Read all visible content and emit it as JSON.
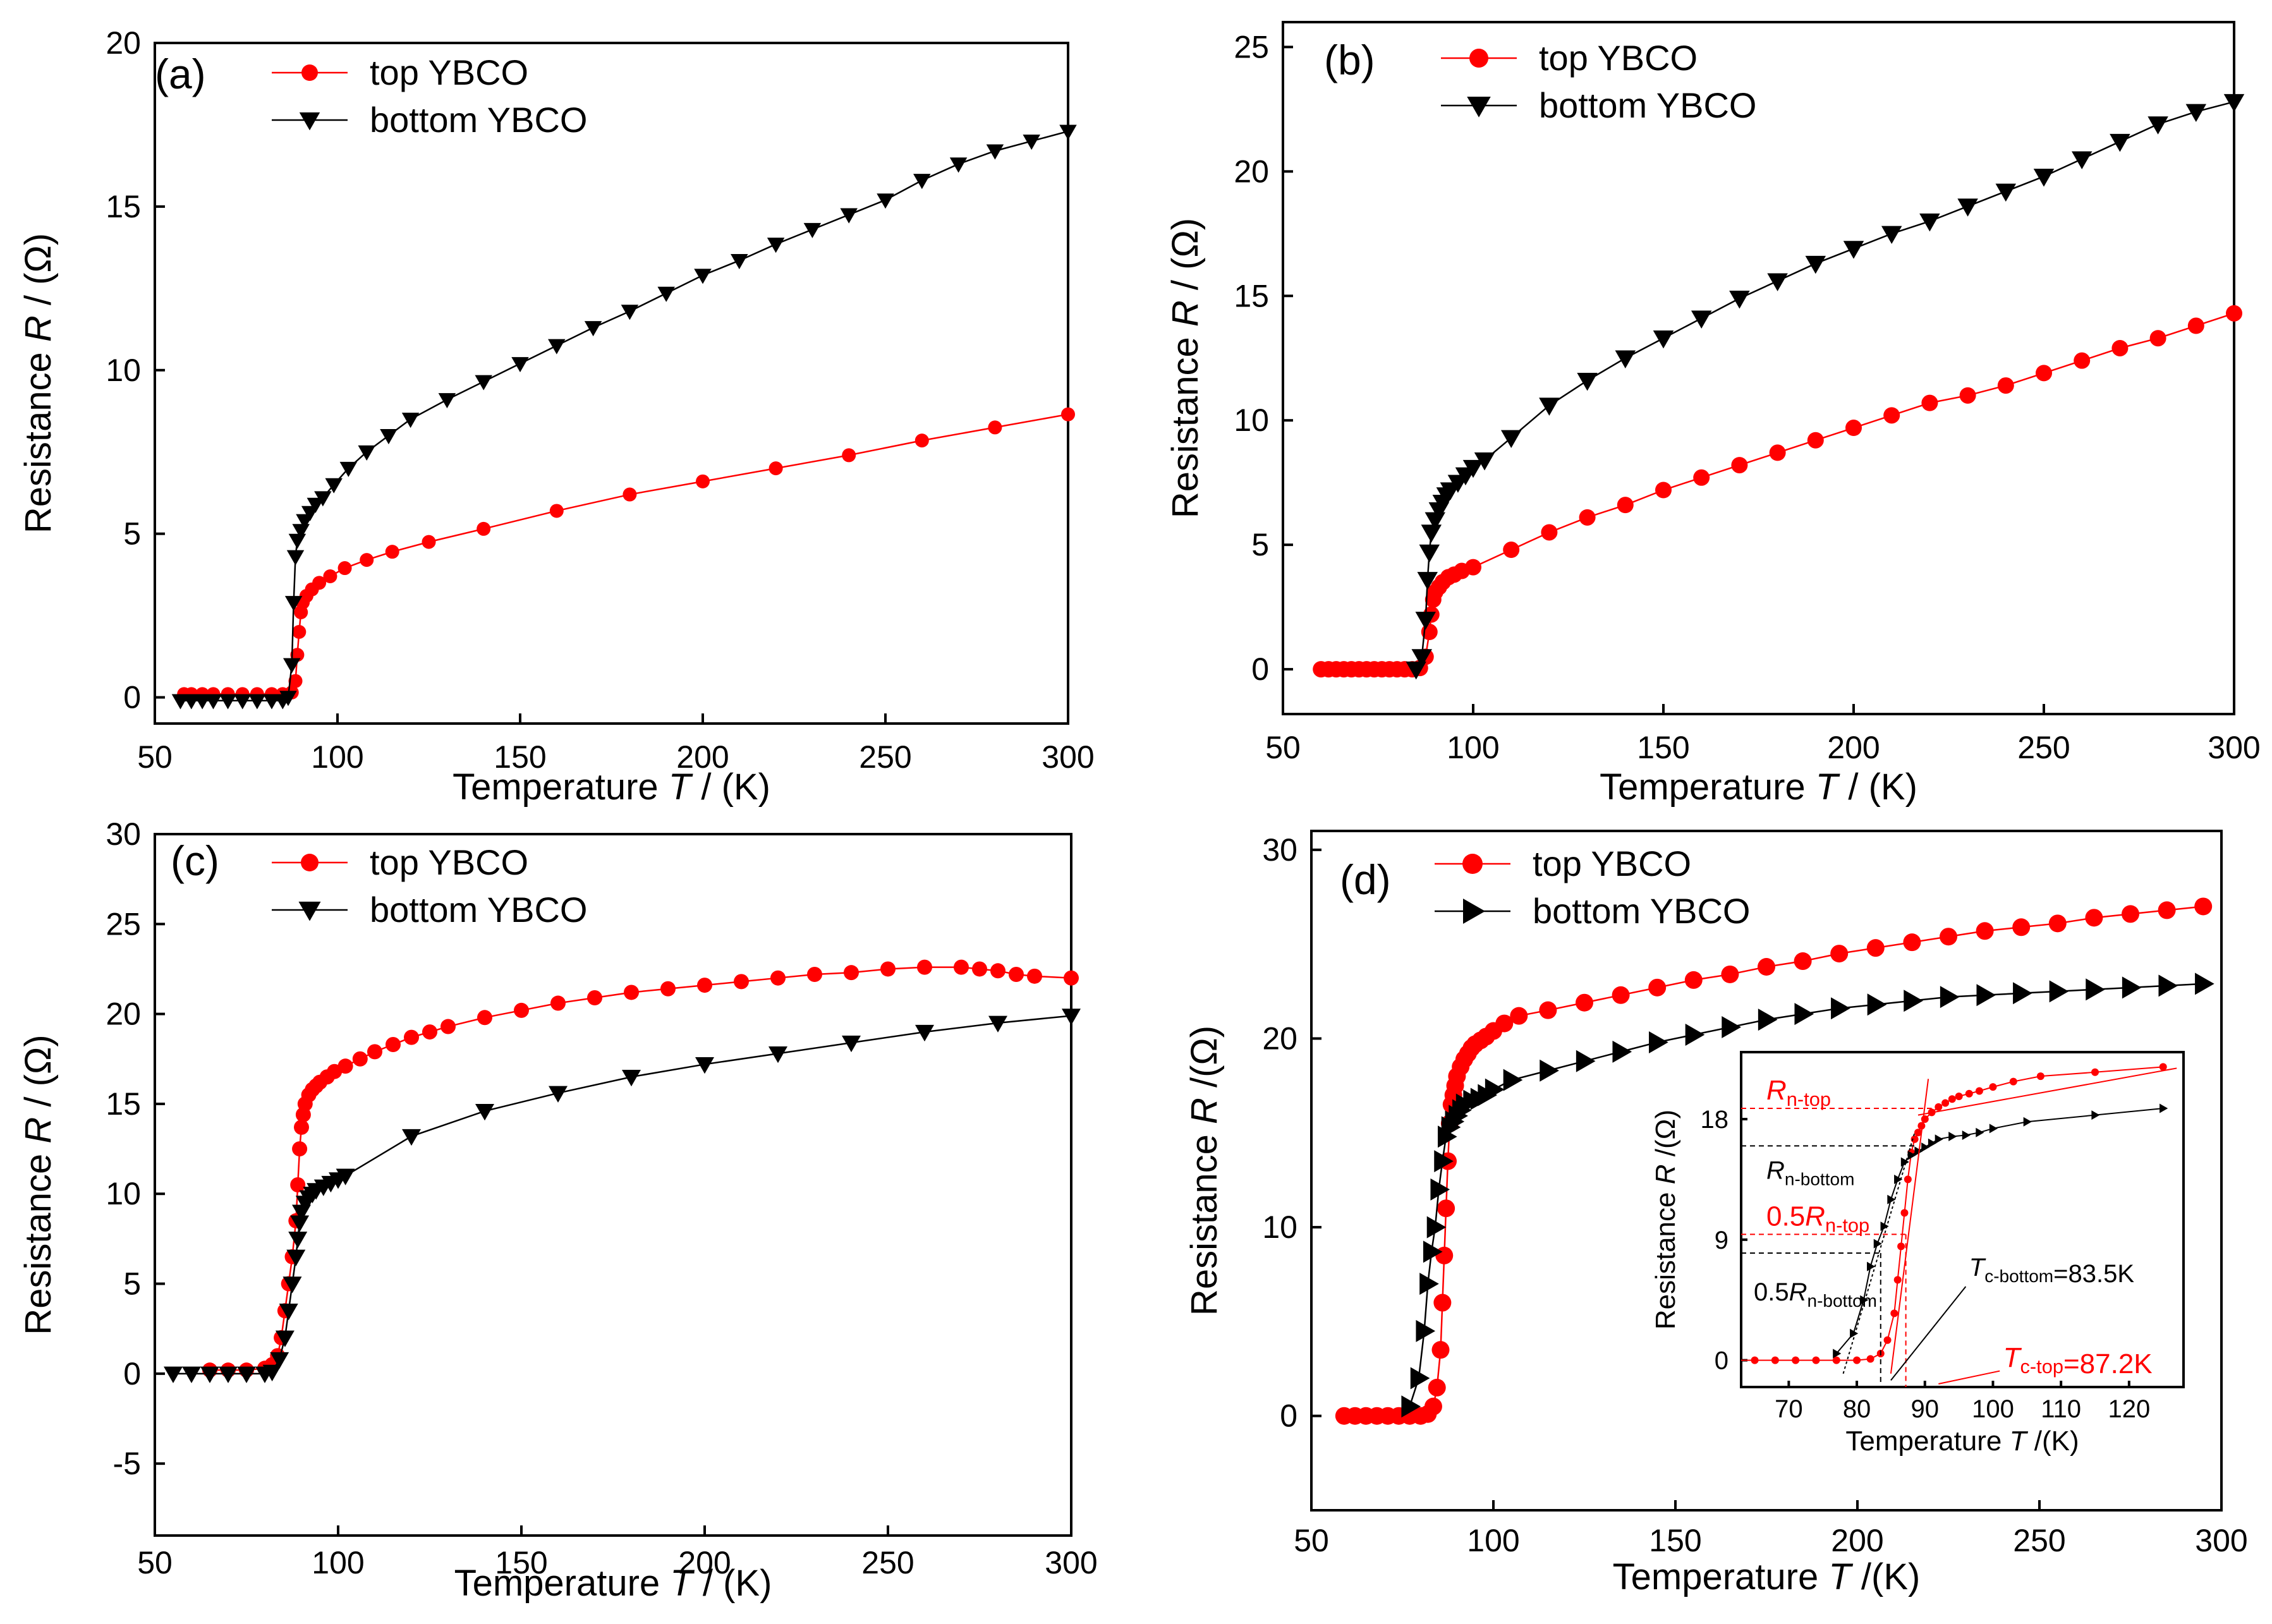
{
  "colors": {
    "top": "#ff0000",
    "bottom": "#000000"
  },
  "chart_data": [
    {
      "panel": "(a)",
      "type": "line",
      "xlabel_prefix": "Temperature ",
      "xlabel_var": "T",
      "xlabel_suffix": " / (K)",
      "ylabel_prefix": "Resistance ",
      "ylabel_var": "R",
      "ylabel_suffix": " / (Ω)",
      "xlim": [
        50,
        300
      ],
      "ylim": [
        -0.8,
        20
      ],
      "xticks": [
        50,
        100,
        150,
        200,
        250,
        300
      ],
      "yticks": [
        0,
        5,
        10,
        15,
        20
      ],
      "legend": [
        "top YBCO",
        "bottom YBCO"
      ],
      "series": [
        {
          "name": "top YBCO",
          "marker": "circle",
          "color": "#ff0000",
          "x": [
            58,
            60,
            63,
            66,
            70,
            74,
            78,
            82,
            85,
            87.5,
            88.5,
            89,
            89.5,
            90,
            90.5,
            91.5,
            93,
            95,
            98,
            102,
            108,
            115,
            125,
            140,
            160,
            180,
            200,
            220,
            240,
            260,
            280,
            300
          ],
          "y": [
            0.1,
            0.1,
            0.1,
            0.1,
            0.1,
            0.1,
            0.1,
            0.1,
            0.1,
            0.15,
            0.5,
            1.3,
            2.0,
            2.6,
            2.9,
            3.1,
            3.3,
            3.5,
            3.7,
            3.95,
            4.2,
            4.45,
            4.75,
            5.15,
            5.7,
            6.2,
            6.6,
            7.0,
            7.4,
            7.85,
            8.25,
            8.65
          ]
        },
        {
          "name": "bottom YBCO",
          "marker": "triangle-down",
          "color": "#000000",
          "x": [
            57,
            60,
            63,
            66,
            70,
            74,
            78,
            82,
            85,
            86.5,
            87.5,
            88,
            88.5,
            89,
            90,
            91,
            92.5,
            94,
            96,
            99,
            103,
            108,
            114,
            120,
            130,
            140,
            150,
            160,
            170,
            180,
            190,
            200,
            210,
            220,
            230,
            240,
            250,
            260,
            270,
            280,
            290,
            300
          ],
          "y": [
            -0.1,
            -0.1,
            -0.1,
            -0.1,
            -0.1,
            -0.1,
            -0.1,
            -0.1,
            -0.1,
            0.0,
            1.0,
            2.9,
            4.3,
            4.8,
            5.1,
            5.4,
            5.65,
            5.9,
            6.1,
            6.5,
            7.0,
            7.5,
            8.0,
            8.5,
            9.1,
            9.65,
            10.2,
            10.75,
            11.3,
            11.8,
            12.35,
            12.9,
            13.35,
            13.85,
            14.3,
            14.75,
            15.2,
            15.8,
            16.3,
            16.7,
            17.0,
            17.3
          ]
        }
      ]
    },
    {
      "panel": "(b)",
      "type": "line",
      "xlabel_prefix": "Temperature ",
      "xlabel_var": "T",
      "xlabel_suffix": " / (K)",
      "ylabel_prefix": "Resistance ",
      "ylabel_var": "R",
      "ylabel_suffix": " / (Ω)",
      "xlim": [
        50,
        300
      ],
      "ylim": [
        -1.8,
        26
      ],
      "xticks": [
        50,
        100,
        150,
        200,
        250,
        300
      ],
      "yticks": [
        0,
        5,
        10,
        15,
        20,
        25
      ],
      "legend": [
        "top YBCO",
        "bottom YBCO"
      ],
      "series": [
        {
          "name": "top YBCO",
          "marker": "circle",
          "color": "#ff0000",
          "x": [
            60,
            62,
            64,
            66,
            68,
            70,
            72,
            74,
            76,
            78,
            80,
            82,
            84,
            86,
            87.5,
            88.5,
            89,
            89.5,
            90,
            91,
            92,
            93.5,
            95,
            97,
            100,
            110,
            120,
            130,
            140,
            150,
            160,
            170,
            180,
            190,
            200,
            210,
            220,
            230,
            240,
            250,
            260,
            270,
            280,
            290,
            300
          ],
          "y": [
            0,
            0,
            0,
            0,
            0,
            0,
            0,
            0,
            0,
            0,
            0,
            0,
            0,
            0.05,
            0.5,
            1.5,
            2.2,
            2.8,
            3.1,
            3.3,
            3.5,
            3.7,
            3.8,
            3.95,
            4.1,
            4.8,
            5.5,
            6.1,
            6.6,
            7.2,
            7.7,
            8.2,
            8.7,
            9.2,
            9.7,
            10.2,
            10.7,
            11.0,
            11.4,
            11.9,
            12.4,
            12.9,
            13.3,
            13.8,
            14.3
          ]
        },
        {
          "name": "bottom YBCO",
          "marker": "triangle-down",
          "color": "#000000",
          "x": [
            85,
            86.5,
            87.5,
            88,
            88.5,
            89,
            90,
            91,
            92,
            93,
            94,
            96,
            98,
            100,
            103,
            110,
            120,
            130,
            140,
            150,
            160,
            170,
            180,
            190,
            200,
            210,
            220,
            230,
            240,
            250,
            260,
            270,
            280,
            290,
            300
          ],
          "y": [
            0,
            0.5,
            2.0,
            3.6,
            4.7,
            5.5,
            6.0,
            6.4,
            6.7,
            7.0,
            7.2,
            7.5,
            7.8,
            8.1,
            8.4,
            9.3,
            10.6,
            11.6,
            12.5,
            13.3,
            14.1,
            14.9,
            15.6,
            16.3,
            16.9,
            17.5,
            18.0,
            18.6,
            19.2,
            19.8,
            20.5,
            21.2,
            21.9,
            22.4,
            22.8
          ]
        }
      ]
    },
    {
      "panel": "(c)",
      "type": "line",
      "xlabel_prefix": "Temperature ",
      "xlabel_var": "T",
      "xlabel_suffix": " / (K)",
      "ylabel_prefix": "Resistance ",
      "ylabel_var": "R",
      "ylabel_suffix": " / (Ω)",
      "xlim": [
        50,
        300
      ],
      "ylim": [
        -9,
        30
      ],
      "xticks": [
        50,
        100,
        150,
        200,
        250,
        300
      ],
      "yticks": [
        -5,
        0,
        5,
        10,
        15,
        20,
        25,
        30
      ],
      "legend": [
        "top YBCO",
        "bottom YBCO"
      ],
      "series": [
        {
          "name": "top YBCO",
          "marker": "circle",
          "color": "#ff0000",
          "x": [
            65,
            70,
            75,
            80,
            82,
            83.5,
            84.5,
            85.5,
            86.5,
            87.5,
            88.5,
            89,
            89.5,
            90,
            90.5,
            91,
            92,
            93,
            94,
            95,
            97,
            99,
            102,
            106,
            110,
            115,
            120,
            125,
            130,
            140,
            150,
            160,
            170,
            180,
            190,
            200,
            210,
            220,
            230,
            240,
            250,
            260,
            270,
            275,
            280,
            285,
            290,
            300
          ],
          "y": [
            0.2,
            0.2,
            0.2,
            0.3,
            0.5,
            1.0,
            2.0,
            3.5,
            5.0,
            6.5,
            8.5,
            10.5,
            12.5,
            13.7,
            14.4,
            15.0,
            15.5,
            15.8,
            16.0,
            16.2,
            16.5,
            16.8,
            17.1,
            17.5,
            17.9,
            18.3,
            18.7,
            19.0,
            19.3,
            19.8,
            20.2,
            20.6,
            20.9,
            21.2,
            21.4,
            21.6,
            21.8,
            22.0,
            22.2,
            22.3,
            22.5,
            22.6,
            22.6,
            22.5,
            22.4,
            22.2,
            22.1,
            22.0
          ]
        },
        {
          "name": "bottom YBCO",
          "marker": "triangle-down",
          "color": "#000000",
          "x": [
            55,
            60,
            65,
            70,
            75,
            80,
            82,
            84,
            85.5,
            86.5,
            87.5,
            88.5,
            89,
            89.5,
            90,
            91,
            92,
            93,
            94,
            96,
            98,
            100,
            102,
            120,
            140,
            160,
            180,
            200,
            220,
            240,
            260,
            280,
            300
          ],
          "y": [
            0,
            0,
            0,
            0,
            0,
            0,
            0.1,
            0.8,
            2.0,
            3.5,
            5.0,
            6.5,
            7.5,
            8.4,
            9.0,
            9.5,
            9.8,
            10.0,
            10.2,
            10.4,
            10.6,
            10.8,
            11.0,
            13.2,
            14.6,
            15.6,
            16.5,
            17.2,
            17.8,
            18.4,
            19.0,
            19.5,
            19.9
          ]
        }
      ]
    },
    {
      "panel": "(d)",
      "type": "line",
      "xlabel_prefix": "Temperature ",
      "xlabel_var": "T",
      "xlabel_suffix": " /(K)",
      "ylabel_prefix": "Resistance ",
      "ylabel_var": "R",
      "ylabel_suffix": " /(Ω)",
      "xlim": [
        50,
        300
      ],
      "ylim": [
        -5,
        31
      ],
      "xticks": [
        50,
        100,
        150,
        200,
        250,
        300
      ],
      "yticks": [
        0,
        10,
        20,
        30
      ],
      "legend": [
        "top YBCO",
        "bottom YBCO"
      ],
      "series": [
        {
          "name": "top YBCO",
          "marker": "circle",
          "color": "#ff0000",
          "x": [
            59,
            62,
            65,
            68,
            71,
            74,
            77,
            80,
            82,
            83.5,
            84.5,
            85.5,
            86,
            86.5,
            87,
            87.5,
            88,
            88.5,
            89,
            89.5,
            90,
            91,
            92,
            93,
            94,
            95,
            96.5,
            98,
            100,
            103,
            107,
            115,
            125,
            135,
            145,
            155,
            165,
            175,
            185,
            195,
            205,
            215,
            225,
            235,
            245,
            255,
            265,
            275,
            285,
            295
          ],
          "y": [
            0,
            0,
            0,
            0,
            0,
            0,
            0,
            0,
            0.1,
            0.5,
            1.5,
            3.5,
            6.0,
            8.5,
            11.0,
            13.5,
            15.5,
            16.5,
            17.0,
            17.5,
            18.0,
            18.5,
            18.9,
            19.2,
            19.5,
            19.7,
            19.9,
            20.1,
            20.4,
            20.8,
            21.2,
            21.5,
            21.9,
            22.3,
            22.7,
            23.1,
            23.4,
            23.8,
            24.1,
            24.5,
            24.8,
            25.1,
            25.4,
            25.7,
            25.9,
            26.1,
            26.4,
            26.6,
            26.8,
            27.0
          ]
        },
        {
          "name": "bottom YBCO",
          "marker": "triangle-right",
          "color": "#000000",
          "x": [
            77,
            79.5,
            81,
            82,
            83,
            84,
            85,
            86,
            87,
            88,
            89,
            90,
            91,
            92,
            94,
            96,
            98,
            100,
            105,
            115,
            125,
            135,
            145,
            155,
            165,
            175,
            185,
            195,
            205,
            215,
            225,
            235,
            245,
            255,
            265,
            275,
            285,
            295
          ],
          "y": [
            0.5,
            2.0,
            4.5,
            7.0,
            8.7,
            10.0,
            12.0,
            13.5,
            14.8,
            15.3,
            15.6,
            15.9,
            16.2,
            16.5,
            16.7,
            16.8,
            17.0,
            17.3,
            17.8,
            18.3,
            18.8,
            19.3,
            19.8,
            20.2,
            20.6,
            21.0,
            21.3,
            21.6,
            21.8,
            22.0,
            22.2,
            22.3,
            22.4,
            22.5,
            22.6,
            22.7,
            22.8,
            22.9
          ]
        }
      ],
      "inset": {
        "xlabel_prefix": "Temperature ",
        "xlabel_var": "T",
        "xlabel_suffix": " /(K)",
        "ylabel_prefix": "Resistance ",
        "ylabel_var": "R",
        "ylabel_suffix": " /(Ω)",
        "xlim": [
          63,
          128
        ],
        "ylim": [
          -2,
          23
        ],
        "xticks": [
          70,
          80,
          90,
          100,
          110,
          120
        ],
        "yticks": [
          0,
          9,
          18
        ],
        "Rn_top": 18.8,
        "Rn_bottom": 16.0,
        "half_Rn_top": 9.4,
        "half_Rn_bottom": 8.0,
        "Tc_bottom": 83.5,
        "Tc_top": 87.2,
        "labels": {
          "rn_top_var": "R",
          "rn_top_sub": "n-top",
          "rn_bottom_var": "R",
          "rn_bottom_sub": "n-bottom",
          "half_top_pre": "0.5",
          "half_top_var": "R",
          "half_top_sub": "n-top",
          "half_bottom_pre": "0.5",
          "half_bottom_var": "R",
          "half_bottom_sub": "n-bottom",
          "tc_bottom_var": "T",
          "tc_bottom_sub": "c-bottom",
          "tc_bottom_val": "=83.5K",
          "tc_top_var": "T",
          "tc_top_sub": "c-top",
          "tc_top_val": "=87.2K"
        }
      }
    }
  ]
}
